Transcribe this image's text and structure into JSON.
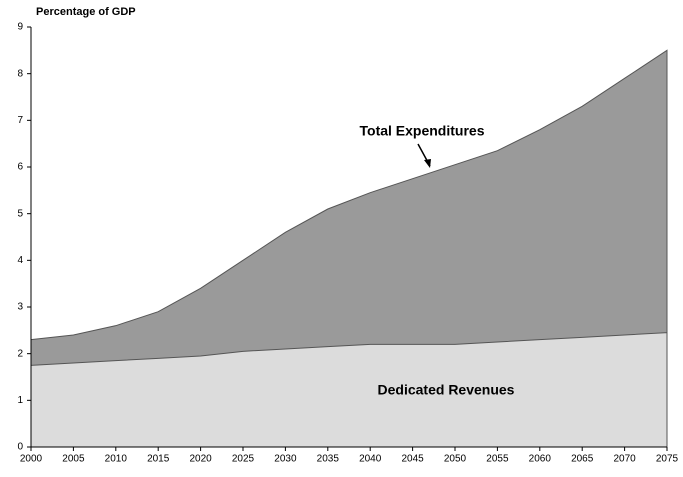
{
  "chart_data": {
    "type": "area",
    "y_axis_label": "Percentage of GDP",
    "x": [
      2000,
      2005,
      2010,
      2015,
      2020,
      2025,
      2030,
      2035,
      2040,
      2045,
      2050,
      2055,
      2060,
      2065,
      2070,
      2075
    ],
    "series": [
      {
        "name": "Total Expenditures",
        "color": "#9a9a9a",
        "values": [
          2.3,
          2.4,
          2.6,
          2.9,
          3.4,
          4.0,
          4.6,
          5.1,
          5.45,
          5.75,
          6.05,
          6.35,
          6.8,
          7.3,
          7.9,
          8.5
        ]
      },
      {
        "name": "Dedicated Revenues",
        "color": "#dcdcdc",
        "values": [
          1.75,
          1.8,
          1.85,
          1.9,
          1.95,
          2.05,
          2.1,
          2.15,
          2.2,
          2.2,
          2.2,
          2.25,
          2.3,
          2.35,
          2.4,
          2.45
        ]
      }
    ],
    "xlim": [
      2000,
      2075
    ],
    "xticks": [
      2000,
      2005,
      2010,
      2015,
      2020,
      2025,
      2030,
      2035,
      2040,
      2045,
      2050,
      2055,
      2060,
      2065,
      2070,
      2075
    ],
    "ylim": [
      0,
      9
    ],
    "yticks": [
      0,
      1,
      2,
      3,
      4,
      5,
      6,
      7,
      8,
      9
    ]
  }
}
